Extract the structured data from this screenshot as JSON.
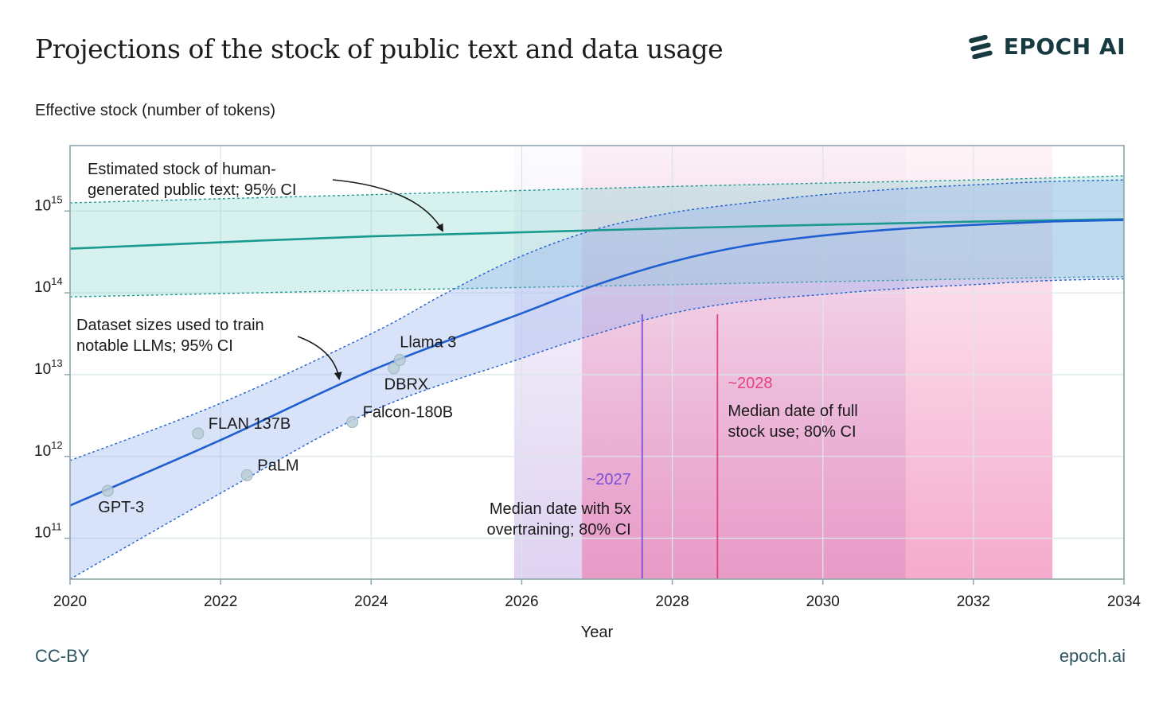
{
  "chart_data": {
    "type": "area",
    "title": "Projections of the stock of public text and data usage",
    "ylabel": "Effective stock (number of tokens)",
    "xlabel": "Year",
    "xlim": [
      2020,
      2034
    ],
    "ylim_log10": [
      10.5,
      15.8
    ],
    "x_ticks": [
      2020,
      2022,
      2024,
      2026,
      2028,
      2030,
      2032,
      2034
    ],
    "y_ticks": [
      {
        "exp": 11,
        "base": "10",
        "power": "11"
      },
      {
        "exp": 12,
        "base": "10",
        "power": "12"
      },
      {
        "exp": 13,
        "base": "10",
        "power": "13"
      },
      {
        "exp": 14,
        "base": "10",
        "power": "14"
      },
      {
        "exp": 15,
        "base": "10",
        "power": "15"
      }
    ],
    "grid": true,
    "stock": {
      "name": "Estimated stock of human-generated public text; 95% CI",
      "color": "#1a9a8e",
      "median": [
        [
          2020,
          14.54
        ],
        [
          2024,
          14.69
        ],
        [
          2028,
          14.79
        ],
        [
          2032,
          14.87
        ],
        [
          2034,
          14.9
        ]
      ],
      "lower": [
        [
          2020,
          13.95
        ],
        [
          2024,
          14.03
        ],
        [
          2028,
          14.1
        ],
        [
          2032,
          14.17
        ],
        [
          2034,
          14.2
        ]
      ],
      "upper": [
        [
          2020,
          15.1
        ],
        [
          2024,
          15.2
        ],
        [
          2028,
          15.3
        ],
        [
          2032,
          15.38
        ],
        [
          2034,
          15.43
        ]
      ]
    },
    "datasets": {
      "name": "Dataset sizes used to train notable LLMs; 95% CI",
      "color": "#1f5fd0",
      "median": [
        [
          2020,
          11.4
        ],
        [
          2022,
          12.2
        ],
        [
          2024,
          13.05
        ],
        [
          2026,
          13.75
        ],
        [
          2027,
          14.1
        ],
        [
          2028,
          14.38
        ],
        [
          2029,
          14.58
        ],
        [
          2030,
          14.7
        ],
        [
          2031,
          14.78
        ],
        [
          2032,
          14.83
        ],
        [
          2033,
          14.87
        ],
        [
          2034,
          14.89
        ]
      ],
      "lower": [
        [
          2020,
          10.5
        ],
        [
          2022,
          11.55
        ],
        [
          2024,
          12.55
        ],
        [
          2026,
          13.2
        ],
        [
          2027,
          13.5
        ],
        [
          2028,
          13.75
        ],
        [
          2029,
          13.9
        ],
        [
          2030,
          13.98
        ],
        [
          2031,
          14.05
        ],
        [
          2032,
          14.1
        ],
        [
          2033,
          14.15
        ],
        [
          2034,
          14.17
        ]
      ],
      "upper": [
        [
          2020,
          11.95
        ],
        [
          2022,
          12.65
        ],
        [
          2024,
          13.5
        ],
        [
          2025,
          14.0
        ],
        [
          2026,
          14.45
        ],
        [
          2027,
          14.78
        ],
        [
          2028,
          14.98
        ],
        [
          2029,
          15.1
        ],
        [
          2030,
          15.2
        ],
        [
          2031,
          15.27
        ],
        [
          2032,
          15.32
        ],
        [
          2033,
          15.36
        ],
        [
          2034,
          15.38
        ]
      ]
    },
    "models": [
      {
        "name": "GPT-3",
        "x": 2020.5,
        "y": 11.58,
        "label_pos": "below"
      },
      {
        "name": "FLAN 137B",
        "x": 2021.7,
        "y": 12.28,
        "label_pos": "right-up"
      },
      {
        "name": "PaLM",
        "x": 2022.35,
        "y": 11.77,
        "label_pos": "right-up"
      },
      {
        "name": "Falcon-180B",
        "x": 2023.75,
        "y": 12.42,
        "label_pos": "right-up"
      },
      {
        "name": "DBRX",
        "x": 2024.3,
        "y": 13.08,
        "label_pos": "below"
      },
      {
        "name": "Llama 3",
        "x": 2024.38,
        "y": 13.18,
        "label_pos": "above"
      }
    ],
    "shaded_regions": [
      {
        "name": "overtraining 80% CI",
        "x0": 2025.9,
        "x1": 2031.1,
        "color": "#c9b5e8"
      },
      {
        "name": "full stock use 80% CI",
        "x0": 2026.8,
        "x1": 2033.05,
        "color": "#ef78ad"
      }
    ],
    "vlines": [
      {
        "x": 2027.6,
        "color": "#7d4fd8",
        "label": "~2027",
        "text_lines": [
          "Median date with 5x",
          "overtraining; 80% CI"
        ]
      },
      {
        "x": 2028.6,
        "color": "#e4417f",
        "label": "~2028",
        "text_lines": [
          "Median date of full",
          "stock use; 80% CI"
        ]
      }
    ],
    "annotations": {
      "stock_lines": [
        "Estimated stock of human-",
        "generated public text; 95% CI"
      ],
      "dataset_lines": [
        "Dataset sizes used to train",
        "notable LLMs; 95% CI"
      ]
    }
  },
  "brand": {
    "name": "EPOCH AI",
    "color": "#163a40"
  },
  "footer": {
    "license": "CC-BY",
    "site": "epoch.ai"
  }
}
